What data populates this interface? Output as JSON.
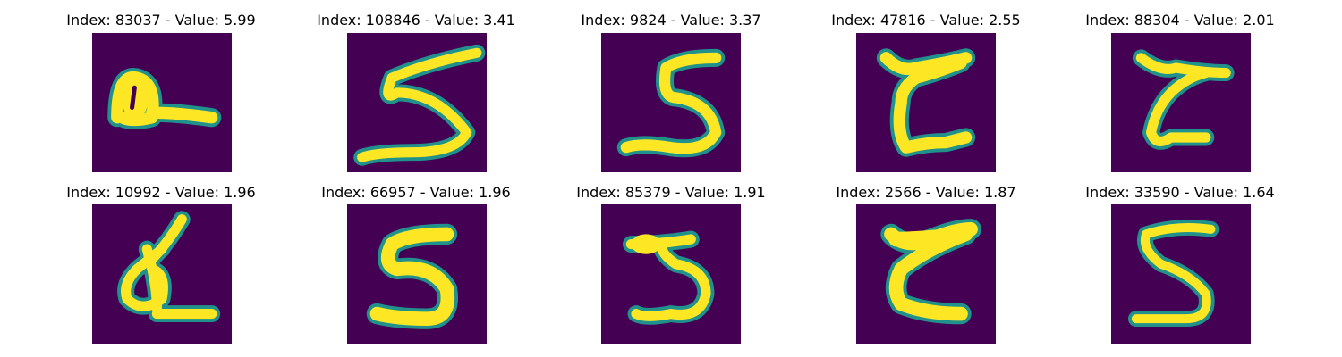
{
  "colors": {
    "background": "#440154",
    "stroke_outer": "#21918c",
    "stroke_mid": "#5ec962",
    "stroke_core": "#fde725"
  },
  "panels": [
    {
      "title": "Index: 83037 - Value: 5.99",
      "index": "83037",
      "value": 5.99,
      "digit": "8 (blob loop with horizontal tail)"
    },
    {
      "title": "Index: 108846 - Value: 3.41",
      "index": "108846",
      "value": 3.41,
      "digit": "5"
    },
    {
      "title": "Index: 9824 - Value: 3.37",
      "index": "9824",
      "value": 3.37,
      "digit": "5"
    },
    {
      "title": "Index: 47816 - Value: 2.55",
      "index": "47816",
      "value": 2.55,
      "digit": "Z-like"
    },
    {
      "title": "Index: 88304 - Value: 2.01",
      "index": "88304",
      "value": 2.01,
      "digit": "Z-like"
    },
    {
      "title": "Index: 10992 - Value: 1.96",
      "index": "10992",
      "value": 1.96,
      "digit": "crossed loop"
    },
    {
      "title": "Index: 66957 - Value: 1.96",
      "index": "66957",
      "value": 1.96,
      "digit": "5"
    },
    {
      "title": "Index: 85379 - Value: 1.91",
      "index": "85379",
      "value": 1.91,
      "digit": "5"
    },
    {
      "title": "Index: 2566 - Value: 1.87",
      "index": "2566",
      "value": 1.87,
      "digit": "Z-like"
    },
    {
      "title": "Index: 33590 - Value: 1.64",
      "index": "33590",
      "value": 1.64,
      "digit": "5"
    }
  ]
}
